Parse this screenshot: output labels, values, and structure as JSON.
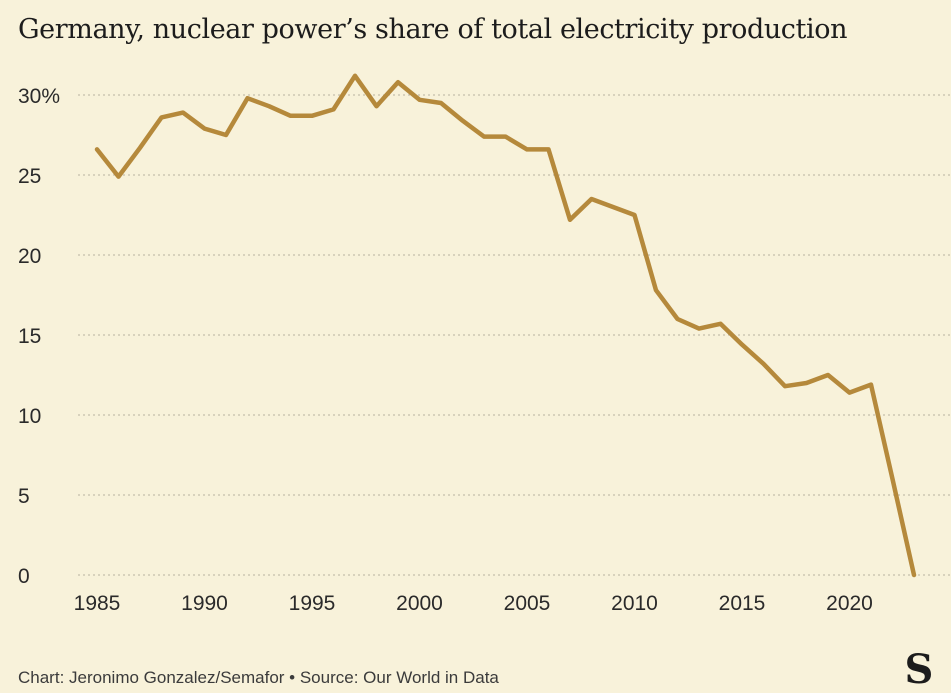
{
  "title": "Germany, nuclear power’s share of total electricity production",
  "caption": "Chart: Jeronimo Gonzalez/Semafor • Source: Our World in Data",
  "logo": "S",
  "colors": {
    "line": "#b5893b",
    "background": "#f8f2da",
    "grid": "#b9b2a0"
  },
  "chart_data": {
    "type": "line",
    "title": "Germany, nuclear power’s share of total electricity production",
    "xlim": [
      1985,
      2023
    ],
    "ylim": [
      0,
      30
    ],
    "y_ticks": [
      0,
      5,
      10,
      15,
      20,
      25,
      30
    ],
    "y_tick_labels": [
      "0",
      "5",
      "10",
      "15",
      "20",
      "25",
      "30%"
    ],
    "x_ticks": [
      1985,
      1990,
      1995,
      2000,
      2005,
      2010,
      2015,
      2020
    ],
    "x_tick_labels": [
      "1985",
      "1990",
      "1995",
      "2000",
      "2005",
      "2010",
      "2015",
      "2020"
    ],
    "grid": "horizontal dotted",
    "x": [
      1985,
      1986,
      1987,
      1988,
      1989,
      1990,
      1991,
      1992,
      1993,
      1994,
      1995,
      1996,
      1997,
      1998,
      1999,
      2000,
      2001,
      2002,
      2003,
      2004,
      2005,
      2006,
      2007,
      2008,
      2009,
      2010,
      2011,
      2012,
      2013,
      2014,
      2015,
      2016,
      2017,
      2018,
      2019,
      2020,
      2021,
      2022,
      2023
    ],
    "values": [
      26.6,
      24.9,
      26.7,
      28.6,
      28.9,
      27.9,
      27.5,
      29.8,
      29.3,
      28.7,
      28.7,
      29.1,
      31.2,
      29.3,
      30.8,
      29.7,
      29.5,
      28.4,
      27.4,
      27.4,
      26.6,
      26.6,
      22.2,
      23.5,
      23.0,
      22.5,
      17.8,
      16.0,
      15.4,
      15.7,
      14.4,
      13.2,
      11.8,
      12.0,
      12.5,
      11.4,
      11.9,
      6.0,
      0.0
    ]
  }
}
